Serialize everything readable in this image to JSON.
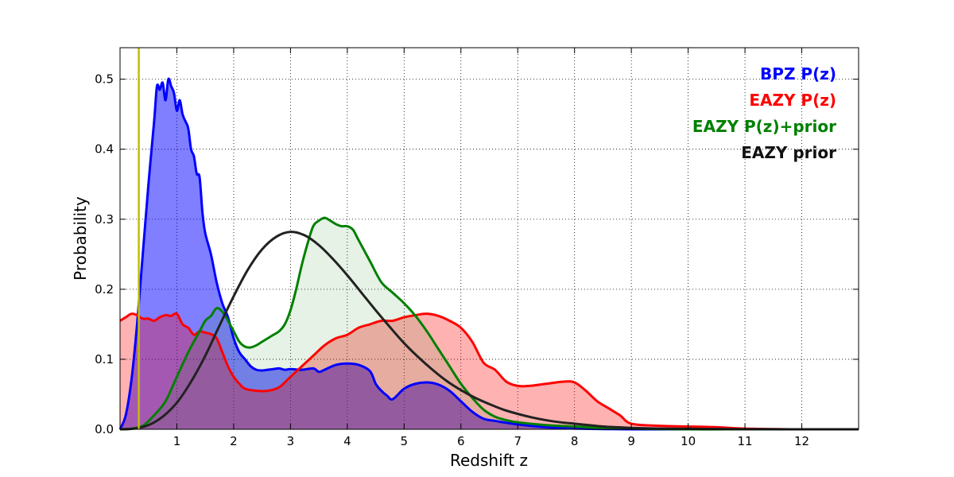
{
  "chart_data": {
    "type": "area",
    "title": "",
    "xlabel": "Redshift z",
    "ylabel": "Probability",
    "xlim": [
      0,
      13
    ],
    "ylim": [
      0,
      0.545
    ],
    "x_ticks": [
      1,
      2,
      3,
      4,
      5,
      6,
      7,
      8,
      9,
      10,
      11,
      12
    ],
    "y_ticks": [
      0.0,
      0.1,
      0.2,
      0.3,
      0.4,
      0.5
    ],
    "x_tick_labels": [
      "1",
      "2",
      "3",
      "4",
      "5",
      "6",
      "7",
      "8",
      "9",
      "10",
      "11",
      "12"
    ],
    "y_tick_labels": [
      "0.0",
      "0.1",
      "0.2",
      "0.3",
      "0.4",
      "0.5"
    ],
    "grid": true,
    "legend_position": "top-right",
    "vertical_marker": {
      "x": 0.33,
      "color": "#bfbf00"
    },
    "series": [
      {
        "name": "BPZ P(z)",
        "color": "#0000ff",
        "fill": "rgba(0,0,255,0.5)",
        "x": [
          0,
          0.1,
          0.2,
          0.3,
          0.4,
          0.5,
          0.6,
          0.65,
          0.7,
          0.75,
          0.8,
          0.85,
          0.9,
          0.95,
          1.0,
          1.05,
          1.1,
          1.15,
          1.2,
          1.25,
          1.3,
          1.35,
          1.4,
          1.45,
          1.5,
          1.6,
          1.7,
          1.8,
          1.9,
          2.0,
          2.1,
          2.2,
          2.3,
          2.4,
          2.5,
          2.6,
          2.7,
          2.8,
          2.9,
          3.0,
          3.2,
          3.4,
          3.5,
          3.6,
          3.8,
          4.0,
          4.2,
          4.4,
          4.5,
          4.6,
          4.7,
          4.8,
          5.0,
          5.2,
          5.4,
          5.6,
          5.8,
          6.0,
          6.2,
          6.4,
          6.6,
          7.0,
          7.5,
          8.0,
          9.0,
          10.0,
          11.0,
          12.0,
          13.0
        ],
        "values": [
          0.0,
          0.02,
          0.07,
          0.15,
          0.25,
          0.35,
          0.44,
          0.49,
          0.485,
          0.495,
          0.47,
          0.5,
          0.49,
          0.48,
          0.455,
          0.47,
          0.45,
          0.44,
          0.43,
          0.4,
          0.39,
          0.365,
          0.36,
          0.31,
          0.28,
          0.25,
          0.21,
          0.18,
          0.16,
          0.13,
          0.11,
          0.1,
          0.09,
          0.085,
          0.084,
          0.085,
          0.086,
          0.087,
          0.085,
          0.086,
          0.085,
          0.087,
          0.082,
          0.085,
          0.092,
          0.094,
          0.092,
          0.083,
          0.065,
          0.055,
          0.048,
          0.043,
          0.058,
          0.065,
          0.067,
          0.064,
          0.055,
          0.04,
          0.025,
          0.015,
          0.012,
          0.007,
          0.003,
          0.001,
          0.0,
          0.0,
          0.0,
          0.0,
          0.0
        ]
      },
      {
        "name": "EAZY P(z)",
        "color": "#ff0000",
        "fill": "rgba(255,0,0,0.3)",
        "x": [
          0,
          0.1,
          0.2,
          0.3,
          0.4,
          0.5,
          0.6,
          0.7,
          0.8,
          0.9,
          1.0,
          1.1,
          1.2,
          1.3,
          1.4,
          1.5,
          1.6,
          1.7,
          1.8,
          1.9,
          2.0,
          2.1,
          2.2,
          2.4,
          2.6,
          2.8,
          3.0,
          3.2,
          3.4,
          3.6,
          3.8,
          4.0,
          4.2,
          4.4,
          4.6,
          4.8,
          5.0,
          5.2,
          5.4,
          5.6,
          5.8,
          6.0,
          6.2,
          6.4,
          6.6,
          6.8,
          7.0,
          7.2,
          7.5,
          7.8,
          8.0,
          8.2,
          8.4,
          8.6,
          8.8,
          9.0,
          9.5,
          10.0,
          10.5,
          11.0,
          11.8,
          12.0,
          13.0
        ],
        "values": [
          0.155,
          0.16,
          0.165,
          0.163,
          0.158,
          0.158,
          0.155,
          0.16,
          0.163,
          0.162,
          0.165,
          0.15,
          0.145,
          0.135,
          0.14,
          0.138,
          0.136,
          0.13,
          0.11,
          0.09,
          0.075,
          0.065,
          0.058,
          0.055,
          0.055,
          0.06,
          0.075,
          0.09,
          0.105,
          0.12,
          0.13,
          0.135,
          0.145,
          0.15,
          0.155,
          0.155,
          0.16,
          0.163,
          0.165,
          0.162,
          0.155,
          0.145,
          0.125,
          0.095,
          0.085,
          0.068,
          0.062,
          0.062,
          0.065,
          0.068,
          0.067,
          0.055,
          0.04,
          0.03,
          0.02,
          0.008,
          0.005,
          0.004,
          0.003,
          0.001,
          0.0,
          0.0,
          0.0
        ]
      },
      {
        "name": "EAZY P(z)+prior",
        "color": "#008000",
        "fill": "rgba(0,128,0,0.1)",
        "x": [
          0,
          0.2,
          0.4,
          0.6,
          0.8,
          1.0,
          1.2,
          1.4,
          1.5,
          1.6,
          1.7,
          1.8,
          1.9,
          2.0,
          2.1,
          2.2,
          2.3,
          2.4,
          2.5,
          2.6,
          2.7,
          2.8,
          2.9,
          3.0,
          3.1,
          3.2,
          3.3,
          3.4,
          3.5,
          3.6,
          3.7,
          3.8,
          3.9,
          4.0,
          4.1,
          4.2,
          4.4,
          4.6,
          4.8,
          5.0,
          5.2,
          5.4,
          5.6,
          5.8,
          6.0,
          6.2,
          6.4,
          6.6,
          6.8,
          7.0,
          7.5,
          8.0,
          8.5,
          9.0,
          10.0,
          11.0,
          12.0,
          13.0
        ],
        "values": [
          0.0,
          0.001,
          0.005,
          0.02,
          0.04,
          0.075,
          0.11,
          0.14,
          0.155,
          0.162,
          0.173,
          0.168,
          0.155,
          0.14,
          0.125,
          0.118,
          0.117,
          0.12,
          0.125,
          0.13,
          0.135,
          0.14,
          0.15,
          0.17,
          0.2,
          0.235,
          0.265,
          0.29,
          0.298,
          0.302,
          0.298,
          0.293,
          0.29,
          0.29,
          0.285,
          0.27,
          0.24,
          0.21,
          0.195,
          0.18,
          0.162,
          0.14,
          0.115,
          0.09,
          0.065,
          0.045,
          0.028,
          0.018,
          0.013,
          0.01,
          0.006,
          0.004,
          0.002,
          0.001,
          0.0,
          0.0,
          0.0,
          0.0
        ]
      },
      {
        "name": "EAZY prior",
        "color": "#222222",
        "fill": "none",
        "x": [
          0,
          0.25,
          0.5,
          0.75,
          1.0,
          1.25,
          1.5,
          1.75,
          2.0,
          2.25,
          2.5,
          2.75,
          3.0,
          3.25,
          3.5,
          3.75,
          4.0,
          4.25,
          4.5,
          4.75,
          5.0,
          5.25,
          5.5,
          5.75,
          6.0,
          6.25,
          6.5,
          6.75,
          7.0,
          7.25,
          7.5,
          7.75,
          8.0,
          8.25,
          8.5,
          8.75,
          9.0,
          9.5,
          10.0,
          10.5,
          11.0,
          11.5,
          12.0,
          13.0
        ],
        "values": [
          0.0,
          0.001,
          0.006,
          0.018,
          0.038,
          0.068,
          0.105,
          0.148,
          0.19,
          0.228,
          0.257,
          0.275,
          0.282,
          0.277,
          0.263,
          0.243,
          0.22,
          0.195,
          0.17,
          0.146,
          0.123,
          0.103,
          0.085,
          0.069,
          0.056,
          0.045,
          0.036,
          0.028,
          0.022,
          0.017,
          0.013,
          0.01,
          0.008,
          0.006,
          0.004,
          0.003,
          0.002,
          0.001,
          0.0007,
          0.0004,
          0.0002,
          0.0001,
          0.0,
          0.0
        ]
      }
    ],
    "legend": [
      {
        "label": "BPZ P(z)",
        "color": "#0000ff"
      },
      {
        "label": "EAZY P(z)",
        "color": "#ff0000"
      },
      {
        "label": "EAZY P(z)+prior",
        "color": "#008000"
      },
      {
        "label": "EAZY prior",
        "color": "#111111"
      }
    ]
  }
}
